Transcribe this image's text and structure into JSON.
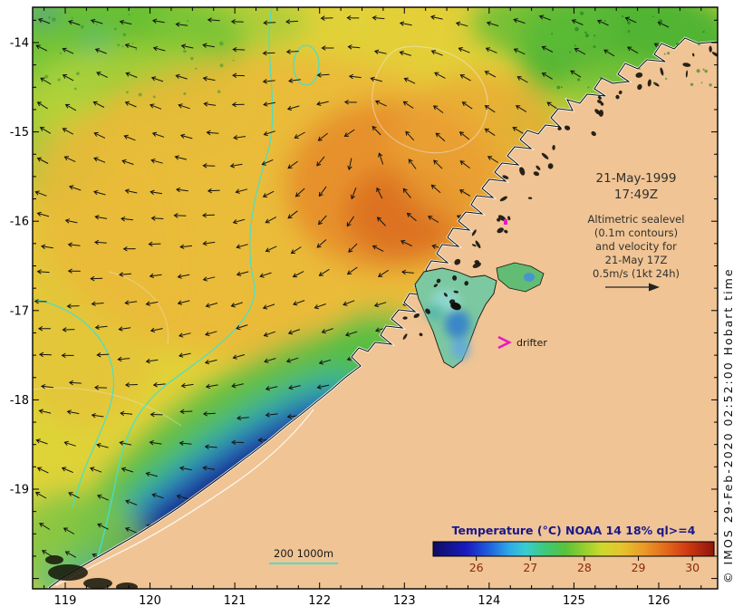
{
  "map": {
    "date_label": [
      "21-May-1999",
      "17:49Z"
    ],
    "altimetric_note": [
      "Altimetric sealevel",
      "(0.1m contours)",
      "and velocity for",
      "21-May 17Z",
      "0.5m/s (1kt 24h)"
    ],
    "drifter_label": "drifter",
    "depth_legend": "200  1000m",
    "credit": "© IMOS 29-Feb-2020 02:52:00 Hobart time",
    "axes": {
      "lon_ticks": [
        119,
        120,
        121,
        122,
        123,
        124,
        125,
        126
      ],
      "lat_ticks": [
        -14,
        -15,
        -16,
        -17,
        -18,
        -19
      ]
    },
    "colors": {
      "land": "#f0c494",
      "depth_contour": "#45e0cf",
      "drifter": "#e818c8",
      "arrow": "#151510",
      "colorbar_title": "#18188c",
      "colorbar_labels": "#8a2a0a"
    }
  },
  "colorbar": {
    "title": "Temperature (°C) NOAA 14 18% ql>=4",
    "tick_values": [
      26,
      27,
      28,
      29,
      30
    ],
    "value_range": [
      25.2,
      30.4
    ],
    "stops": [
      [
        0,
        "#0d0d62"
      ],
      [
        0.12,
        "#1a1ac0"
      ],
      [
        0.2,
        "#2060dd"
      ],
      [
        0.27,
        "#2fa8e8"
      ],
      [
        0.33,
        "#38cdd0"
      ],
      [
        0.4,
        "#3fc878"
      ],
      [
        0.47,
        "#58c23c"
      ],
      [
        0.54,
        "#96cf2e"
      ],
      [
        0.6,
        "#ccd92e"
      ],
      [
        0.67,
        "#e6c42e"
      ],
      [
        0.75,
        "#ea9a28"
      ],
      [
        0.83,
        "#e2691c"
      ],
      [
        0.9,
        "#d23c12"
      ],
      [
        1,
        "#8e150a"
      ]
    ]
  },
  "chart_data": {
    "type": "heatmap",
    "title": "Temperature (°C) NOAA 14 18% ql>=4",
    "x_tick_labels": [
      119,
      120,
      121,
      122,
      123,
      124,
      125,
      126
    ],
    "y_tick_labels": [
      -14,
      -15,
      -16,
      -17,
      -18,
      -19
    ],
    "colorbar_ticks": [
      26,
      27,
      28,
      29,
      30
    ],
    "annotations": [
      "21-May-1999 17:49Z",
      "Altimetric sealevel (0.1m contours) and velocity for 21-May 17Z 0.5m/s (1kt 24h)",
      "drifter",
      "200  1000m"
    ]
  }
}
